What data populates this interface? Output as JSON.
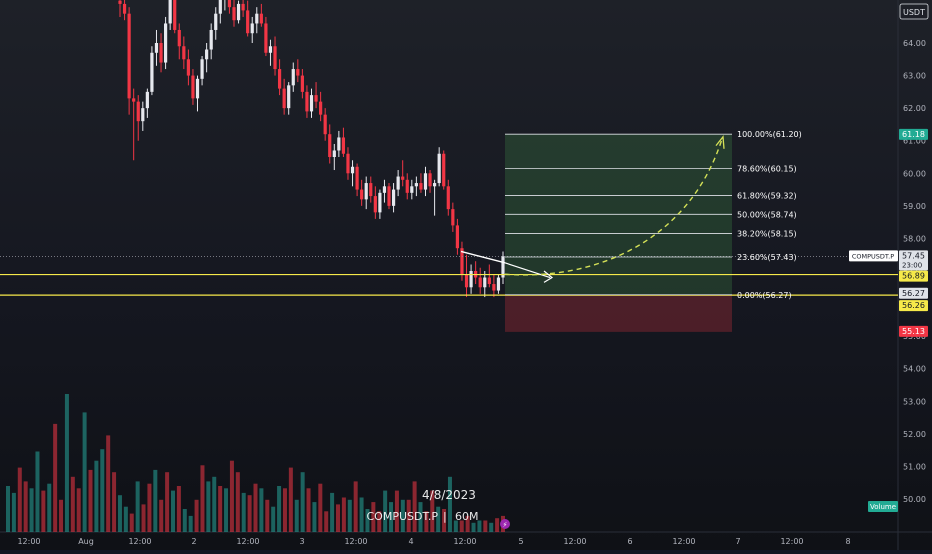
{
  "currency_badge": "USDT",
  "chart_data": {
    "type": "candlestick",
    "symbol": "COMPUSDT.P",
    "timeframe": "60M",
    "date_label": "4/8/2023",
    "volume_label": "Volume",
    "x_ticks": [
      "12:00",
      "Aug",
      "12:00",
      "2",
      "12:00",
      "3",
      "12:00",
      "4",
      "12:00",
      "5",
      "12:00",
      "6",
      "12:00",
      "7",
      "12:00",
      "8"
    ],
    "y_ticks": [
      "64.00",
      "63.00",
      "62.00",
      "61.00",
      "60.00",
      "59.00",
      "58.00",
      "57.00",
      "56.00",
      "55.00",
      "54.00",
      "53.00",
      "52.00",
      "51.00",
      "50.00"
    ],
    "ylim": [
      49.6,
      65.3
    ],
    "price_labels": [
      {
        "text": "61.18",
        "price": 61.18,
        "color": "#22ab94"
      },
      {
        "text": "57.45",
        "sub": "23:00",
        "price": 57.45,
        "color": "#dfe2e8"
      },
      {
        "text": "56.89",
        "price": 56.89,
        "color": "#f6e94a"
      },
      {
        "text": "56.27",
        "price": 56.27,
        "color": "#dfe2e8"
      },
      {
        "text": "56.26",
        "price": 56.26,
        "color": "#f6e94a"
      },
      {
        "text": "55.13",
        "price": 55.13,
        "color": "#f23645"
      }
    ],
    "symbol_tag": "COMPUSDT.P",
    "fib_levels": [
      {
        "label": "100.00%(61.20)",
        "price": 61.2
      },
      {
        "label": "78.60%(60.15)",
        "price": 60.15
      },
      {
        "label": "61.80%(59.32)",
        "price": 59.32
      },
      {
        "label": "50.00%(58.74)",
        "price": 58.74
      },
      {
        "label": "38.20%(58.15)",
        "price": 58.15
      },
      {
        "label": "23.60%(57.43)",
        "price": 57.43
      },
      {
        "label": "0.00%(56.27)",
        "price": 56.27
      }
    ],
    "horizontal_lines": [
      56.89,
      56.26
    ],
    "target_zone": {
      "top": 61.2,
      "bottom": 56.27
    },
    "stop_zone": {
      "top": 56.27,
      "bottom": 55.13
    },
    "candles": [
      [
        65.3,
        65.5,
        64.8,
        65.2
      ],
      [
        65.2,
        65.6,
        64.7,
        64.9
      ],
      [
        64.9,
        65.1,
        61.8,
        62.3
      ],
      [
        62.3,
        62.6,
        60.4,
        62.2
      ],
      [
        62.2,
        62.4,
        61.0,
        61.6
      ],
      [
        61.6,
        62.2,
        61.3,
        62.0
      ],
      [
        62.0,
        62.6,
        61.7,
        62.5
      ],
      [
        62.5,
        63.9,
        62.4,
        63.7
      ],
      [
        63.7,
        64.4,
        63.3,
        64.0
      ],
      [
        64.0,
        64.3,
        63.1,
        63.4
      ],
      [
        63.4,
        64.8,
        63.2,
        64.6
      ],
      [
        64.6,
        65.6,
        64.4,
        65.5
      ],
      [
        65.5,
        65.8,
        64.3,
        64.4
      ],
      [
        64.4,
        64.6,
        63.5,
        63.9
      ],
      [
        63.9,
        64.2,
        63.2,
        63.5
      ],
      [
        63.5,
        63.8,
        62.7,
        63.0
      ],
      [
        63.0,
        63.2,
        62.1,
        62.3
      ],
      [
        62.3,
        63.0,
        61.9,
        62.9
      ],
      [
        62.9,
        63.6,
        62.7,
        63.5
      ],
      [
        63.5,
        64.0,
        63.1,
        63.8
      ],
      [
        63.8,
        64.6,
        63.5,
        64.4
      ],
      [
        64.4,
        65.1,
        64.1,
        64.9
      ],
      [
        64.9,
        65.6,
        64.6,
        65.4
      ],
      [
        65.4,
        65.9,
        65.0,
        65.6
      ],
      [
        65.6,
        65.8,
        64.9,
        65.1
      ],
      [
        65.1,
        65.4,
        64.5,
        64.7
      ],
      [
        64.7,
        65.3,
        64.6,
        65.2
      ],
      [
        65.2,
        65.6,
        64.8,
        65.0
      ],
      [
        65.0,
        65.3,
        64.2,
        64.3
      ],
      [
        64.3,
        64.8,
        64.0,
        64.6
      ],
      [
        64.6,
        65.1,
        64.3,
        64.9
      ],
      [
        64.9,
        65.2,
        64.5,
        64.6
      ],
      [
        64.6,
        64.8,
        63.6,
        63.7
      ],
      [
        63.7,
        64.1,
        63.3,
        63.9
      ],
      [
        63.9,
        64.2,
        63.0,
        63.2
      ],
      [
        63.2,
        63.5,
        62.4,
        62.6
      ],
      [
        62.6,
        62.9,
        61.8,
        62.0
      ],
      [
        62.0,
        62.8,
        61.8,
        62.7
      ],
      [
        62.7,
        63.4,
        62.5,
        63.2
      ],
      [
        63.2,
        63.5,
        62.8,
        63.0
      ],
      [
        63.0,
        63.2,
        62.3,
        62.5
      ],
      [
        62.5,
        62.7,
        61.7,
        61.9
      ],
      [
        61.9,
        62.6,
        61.7,
        62.4
      ],
      [
        62.4,
        62.8,
        62.0,
        62.2
      ],
      [
        62.2,
        62.5,
        61.6,
        61.8
      ],
      [
        61.8,
        62.0,
        61.0,
        61.2
      ],
      [
        61.2,
        61.5,
        60.3,
        60.5
      ],
      [
        60.5,
        60.9,
        60.1,
        60.7
      ],
      [
        60.7,
        61.3,
        60.5,
        61.1
      ],
      [
        61.1,
        61.4,
        60.5,
        60.6
      ],
      [
        60.6,
        60.8,
        59.8,
        60.0
      ],
      [
        60.0,
        60.4,
        59.6,
        60.2
      ],
      [
        60.2,
        60.3,
        59.3,
        59.5
      ],
      [
        59.5,
        59.8,
        59.0,
        59.2
      ],
      [
        59.2,
        59.9,
        58.9,
        59.7
      ],
      [
        59.7,
        59.9,
        59.1,
        59.3
      ],
      [
        59.3,
        59.6,
        58.6,
        58.8
      ],
      [
        58.8,
        59.5,
        58.6,
        59.4
      ],
      [
        59.4,
        59.8,
        59.1,
        59.6
      ],
      [
        59.6,
        59.7,
        58.9,
        59.0
      ],
      [
        59.0,
        59.7,
        58.8,
        59.5
      ],
      [
        59.5,
        60.1,
        59.3,
        59.9
      ],
      [
        59.9,
        60.4,
        59.6,
        59.8
      ],
      [
        59.8,
        60.0,
        59.2,
        59.4
      ],
      [
        59.4,
        59.8,
        59.2,
        59.6
      ],
      [
        59.6,
        59.9,
        59.3,
        59.7
      ],
      [
        59.7,
        60.0,
        59.4,
        59.5
      ],
      [
        59.5,
        60.2,
        59.3,
        60.0
      ],
      [
        60.0,
        60.1,
        59.4,
        59.6
      ],
      [
        59.6,
        59.8,
        58.7,
        59.7
      ],
      [
        59.7,
        60.8,
        59.6,
        60.6
      ],
      [
        60.6,
        60.7,
        59.5,
        59.6
      ],
      [
        59.6,
        59.8,
        58.7,
        58.9
      ],
      [
        58.9,
        59.1,
        58.2,
        58.4
      ],
      [
        58.4,
        58.6,
        57.5,
        57.7
      ],
      [
        57.7,
        57.9,
        56.7,
        56.9
      ],
      [
        56.9,
        57.5,
        56.2,
        56.5
      ],
      [
        56.5,
        57.2,
        56.3,
        57.0
      ],
      [
        57.0,
        57.3,
        56.6,
        56.8
      ],
      [
        56.8,
        57.1,
        56.3,
        56.5
      ],
      [
        56.5,
        57.0,
        56.2,
        56.8
      ],
      [
        56.8,
        57.2,
        56.5,
        56.6
      ],
      [
        56.6,
        56.9,
        56.2,
        56.4
      ],
      [
        56.4,
        56.9,
        56.3,
        56.8
      ],
      [
        56.8,
        57.6,
        56.6,
        57.45
      ]
    ],
    "volumes": [
      0.2,
      0.17,
      0.28,
      0.22,
      0.19,
      0.35,
      0.18,
      0.21,
      0.47,
      0.14,
      0.6,
      0.24,
      0.19,
      0.52,
      0.27,
      0.31,
      0.36,
      0.42,
      0.26,
      0.16,
      0.11,
      0.08,
      0.22,
      0.12,
      0.21,
      0.27,
      0.14,
      0.26,
      0.18,
      0.2,
      0.1,
      0.07,
      0.14,
      0.29,
      0.22,
      0.24,
      0.2,
      0.19,
      0.31,
      0.26,
      0.17,
      0.16,
      0.21,
      0.19,
      0.14,
      0.11,
      0.2,
      0.19,
      0.28,
      0.14,
      0.26,
      0.19,
      0.13,
      0.21,
      0.09,
      0.17,
      0.12,
      0.15,
      0.14,
      0.22,
      0.15,
      0.1,
      0.13,
      0.09,
      0.18,
      0.13,
      0.18,
      0.14,
      0.14,
      0.22,
      0.13,
      0.09,
      0.18,
      0.11,
      0.1,
      0.24,
      0.05,
      0.05,
      0.07,
      0.04,
      0.05,
      0.05,
      0.04,
      0.06,
      0.07
    ]
  }
}
